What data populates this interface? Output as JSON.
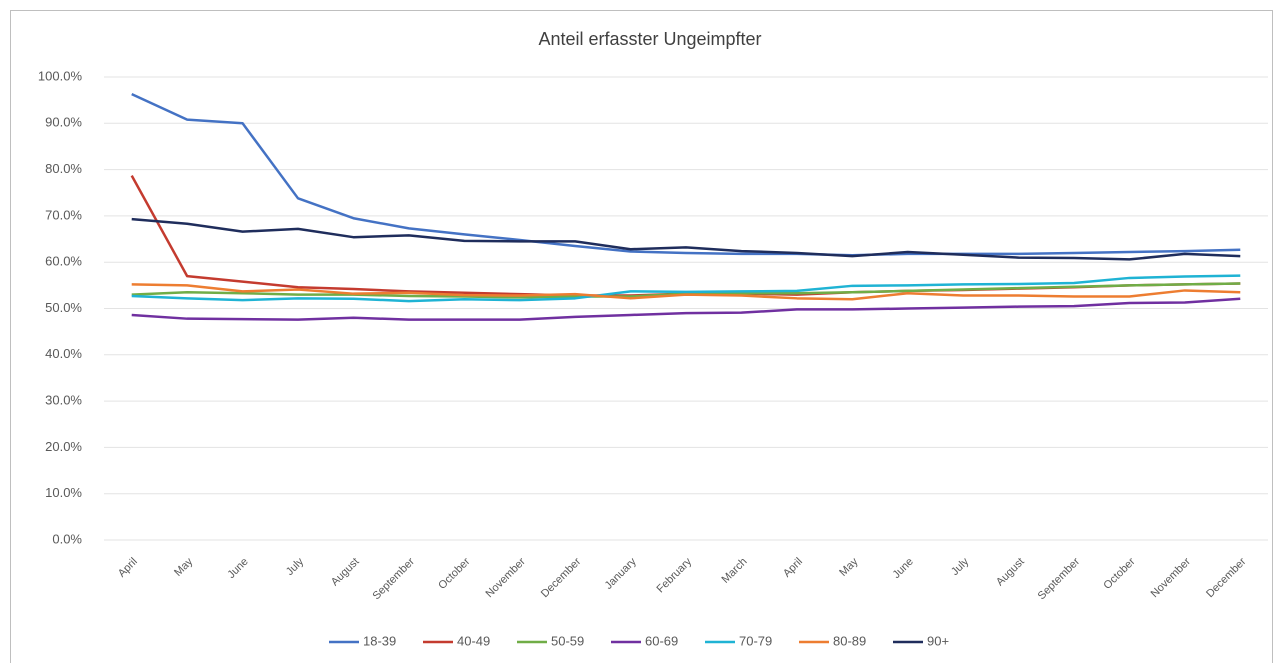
{
  "chart_data": {
    "type": "line",
    "title": "Anteil erfasster Ungeimpfter",
    "categories": [
      "April",
      "May",
      "June",
      "July",
      "August",
      "September",
      "October",
      "November",
      "December",
      "January",
      "February",
      "March",
      "April",
      "May",
      "June",
      "July",
      "August",
      "September",
      "October",
      "November",
      "December"
    ],
    "series": [
      {
        "name": "18-39",
        "color": "#4472c4",
        "values": [
          96.3,
          90.8,
          90.0,
          73.8,
          69.5,
          67.3,
          66.0,
          64.8,
          63.5,
          62.3,
          62.0,
          61.8,
          61.8,
          61.5,
          61.8,
          61.8,
          61.8,
          62.0,
          62.2,
          62.4,
          62.7
        ]
      },
      {
        "name": "40-49",
        "color": "#c43b2f",
        "values": [
          78.7,
          57.0,
          55.8,
          54.6,
          54.2,
          53.7,
          53.4,
          53.1,
          52.8,
          52.8,
          53.2,
          53.2,
          53.0,
          53.5,
          53.8,
          54.0,
          54.3,
          54.6,
          55.0,
          55.2,
          55.4
        ]
      },
      {
        "name": "50-59",
        "color": "#70ad47",
        "values": [
          53.0,
          53.5,
          53.3,
          53.0,
          53.0,
          52.7,
          52.6,
          52.4,
          52.6,
          52.6,
          53.2,
          53.3,
          53.3,
          53.5,
          53.8,
          54.1,
          54.4,
          54.7,
          55.0,
          55.2,
          55.4
        ]
      },
      {
        "name": "60-69",
        "color": "#7030a0",
        "values": [
          48.6,
          47.8,
          47.7,
          47.6,
          48.0,
          47.6,
          47.6,
          47.6,
          48.2,
          48.6,
          49.0,
          49.1,
          49.8,
          49.8,
          50.0,
          50.2,
          50.4,
          50.5,
          51.2,
          51.3,
          52.1
        ]
      },
      {
        "name": "70-79",
        "color": "#1fb3d4",
        "values": [
          52.7,
          52.2,
          51.8,
          52.2,
          52.1,
          51.6,
          52.0,
          51.8,
          52.2,
          53.7,
          53.6,
          53.7,
          53.8,
          54.9,
          55.0,
          55.2,
          55.3,
          55.5,
          56.6,
          56.9,
          57.1
        ]
      },
      {
        "name": "80-89",
        "color": "#ed7d31",
        "values": [
          55.2,
          55.0,
          53.7,
          54.1,
          53.2,
          53.4,
          52.9,
          52.8,
          53.1,
          52.2,
          53.0,
          52.8,
          52.2,
          52.0,
          53.3,
          52.8,
          52.8,
          52.6,
          52.6,
          53.9,
          53.5
        ]
      },
      {
        "name": "90+",
        "color": "#1f2d5c",
        "values": [
          69.3,
          68.3,
          66.6,
          67.2,
          65.4,
          65.8,
          64.6,
          64.5,
          64.5,
          62.8,
          63.2,
          62.4,
          62.0,
          61.3,
          62.2,
          61.6,
          61.0,
          60.9,
          60.6,
          61.8,
          61.3
        ]
      }
    ],
    "ylim": [
      0,
      100
    ],
    "yticks": [
      {
        "value": 0,
        "label": "0.0%"
      },
      {
        "value": 10,
        "label": "10.0%"
      },
      {
        "value": 20,
        "label": "20.0%"
      },
      {
        "value": 30,
        "label": "30.0%"
      },
      {
        "value": 40,
        "label": "40.0%"
      },
      {
        "value": 50,
        "label": "50.0%"
      },
      {
        "value": 60,
        "label": "60.0%"
      },
      {
        "value": 70,
        "label": "70.0%"
      },
      {
        "value": 80,
        "label": "80.0%"
      },
      {
        "value": 90,
        "label": "90.0%"
      },
      {
        "value": 100,
        "label": "100.0%"
      }
    ],
    "grid": true,
    "legend": "bottom"
  }
}
